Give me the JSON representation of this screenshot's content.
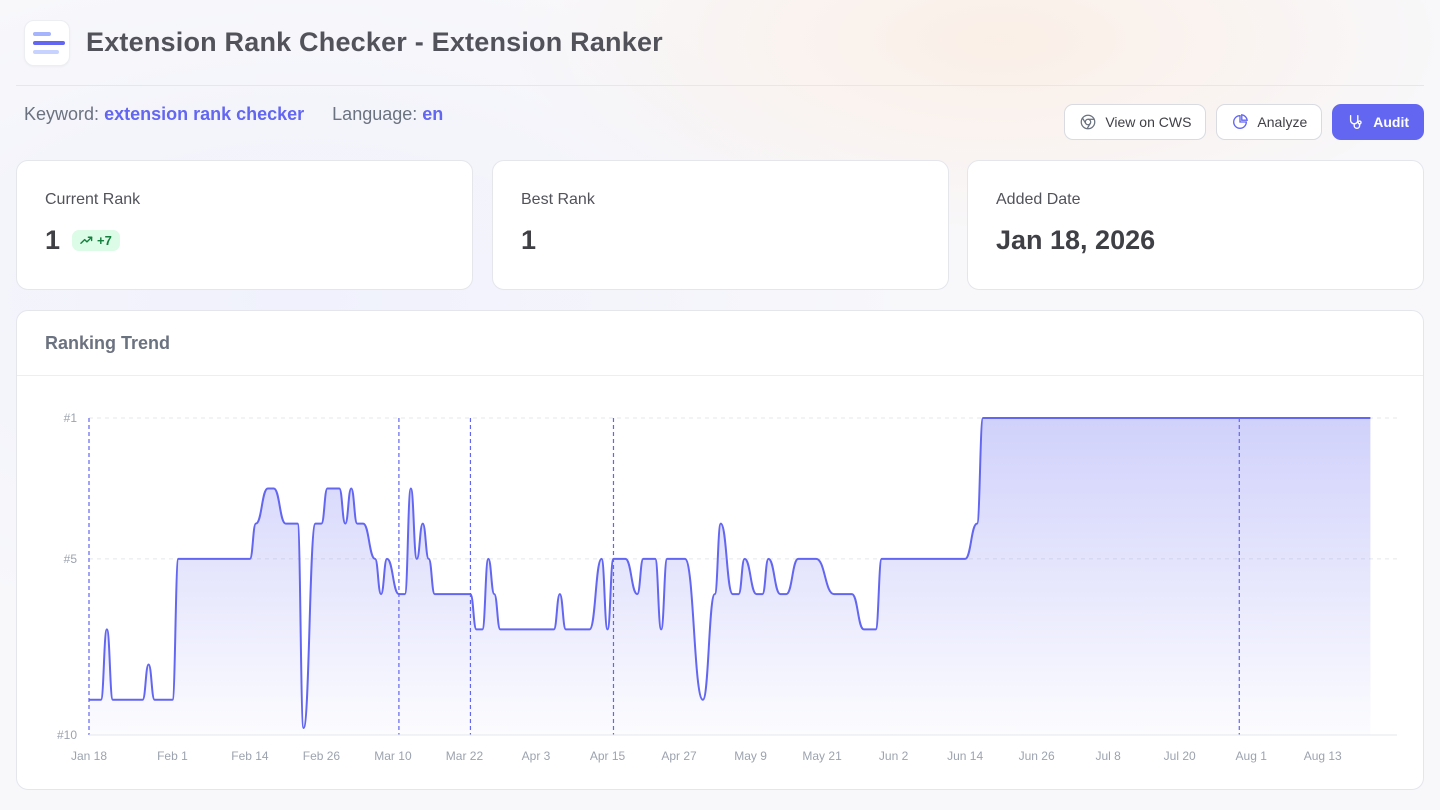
{
  "header": {
    "title": "Extension Rank Checker - Extension Ranker",
    "logo_icon": "bars-logo-icon"
  },
  "meta": {
    "keyword_label": "Keyword:",
    "keyword_value": "extension rank checker",
    "language_label": "Language:",
    "language_value": "en"
  },
  "actions": {
    "view_cws": {
      "label": "View on CWS",
      "icon": "chrome-icon"
    },
    "analyze": {
      "label": "Analyze",
      "icon": "pie-chart-icon"
    },
    "audit": {
      "label": "Audit",
      "icon": "stethoscope-icon"
    }
  },
  "stats": {
    "current_rank": {
      "label": "Current Rank",
      "value": "1",
      "change": "+7"
    },
    "best_rank": {
      "label": "Best Rank",
      "value": "1"
    },
    "added_date": {
      "label": "Added Date",
      "value": "Jan 18, 2026"
    }
  },
  "colors": {
    "accent": "#6366f1",
    "success_bg": "#dcfce7",
    "success_text": "#15803d"
  },
  "chart_title": "Ranking Trend",
  "chart_data": {
    "type": "line",
    "title": "Ranking Trend",
    "y_ticks": [
      "#1",
      "#5",
      "#10"
    ],
    "y_inverted": true,
    "ylim": [
      10,
      1
    ],
    "x_ticks": [
      "Jan 18",
      "Feb 1",
      "Feb 14",
      "Feb 26",
      "Mar 10",
      "Mar 22",
      "Apr 3",
      "Apr 15",
      "Apr 27",
      "May 9",
      "May 21",
      "Jun 2",
      "Jun 14",
      "Jun 26",
      "Jul 8",
      "Jul 20",
      "Aug 1",
      "Aug 13"
    ],
    "event_markers": [
      "Jan 18",
      "Mar 11",
      "Mar 23",
      "Apr 16",
      "Jul 30"
    ],
    "grid": true,
    "area_fill": true,
    "series": [
      {
        "x": [
          "Jan 18",
          "Jan 20",
          "Jan 21",
          "Jan 22",
          "Jan 24",
          "Jan 27",
          "Jan 28",
          "Jan 29",
          "Jan 31",
          "Feb 1",
          "Feb 2",
          "Feb 3",
          "Feb 5",
          "Feb 8",
          "Feb 12",
          "Feb 14",
          "Feb 15",
          "Feb 17",
          "Feb 18",
          "Feb 20",
          "Feb 21",
          "Feb 22",
          "Feb 23",
          "Feb 25",
          "Feb 26",
          "Feb 27",
          "Mar 1",
          "Mar 2",
          "Mar 3",
          "Mar 4",
          "Mar 5",
          "Mar 7",
          "Mar 8",
          "Mar 9",
          "Mar 11",
          "Mar 12",
          "Mar 13",
          "Mar 14",
          "Mar 15",
          "Mar 16",
          "Mar 17",
          "Mar 23",
          "Mar 24",
          "Mar 25",
          "Mar 26",
          "Mar 27",
          "Mar 28",
          "Mar 30",
          "Apr 2",
          "Apr 4",
          "Apr 6",
          "Apr 7",
          "Apr 8",
          "Apr 11",
          "Apr 12",
          "Apr 14",
          "Apr 15",
          "Apr 16",
          "Apr 18",
          "Apr 20",
          "Apr 21",
          "Apr 23",
          "Apr 24",
          "Apr 25",
          "Apr 27",
          "Apr 28",
          "May 1",
          "May 3",
          "May 4",
          "May 6",
          "May 7",
          "May 8",
          "May 10",
          "May 11",
          "May 12",
          "May 14",
          "May 15",
          "May 17",
          "May 19",
          "May 20",
          "May 23",
          "May 24",
          "May 26",
          "May 28",
          "May 30",
          "May 31",
          "Jun 2",
          "Jun 3",
          "Jun 5",
          "Jun 13",
          "Jun 14",
          "Jun 16",
          "Jun 17",
          "Jun 30",
          "Jul 15",
          "Jul 30",
          "Aug 14",
          "Aug 21"
        ],
        "y": [
          9,
          9,
          7,
          9,
          9,
          9,
          8,
          9,
          9,
          9,
          5,
          5,
          5,
          5,
          5,
          5,
          4,
          3,
          3,
          4,
          4,
          4,
          9.8,
          4,
          4,
          3,
          3,
          4,
          3,
          4,
          4,
          5,
          6,
          5,
          6,
          6,
          3,
          5,
          4,
          5,
          6,
          6,
          7,
          7,
          5,
          6,
          7,
          7,
          7,
          7,
          7,
          6,
          7,
          7,
          7,
          5,
          7,
          5,
          5,
          6,
          5,
          5,
          7,
          5,
          5,
          5,
          9,
          6,
          4,
          6,
          6,
          5,
          6,
          6,
          5,
          6,
          6,
          5,
          5,
          5,
          6,
          6,
          6,
          7,
          7,
          5,
          5,
          5,
          5,
          5,
          5,
          4,
          1,
          1,
          1,
          1,
          1,
          1
        ]
      }
    ]
  }
}
